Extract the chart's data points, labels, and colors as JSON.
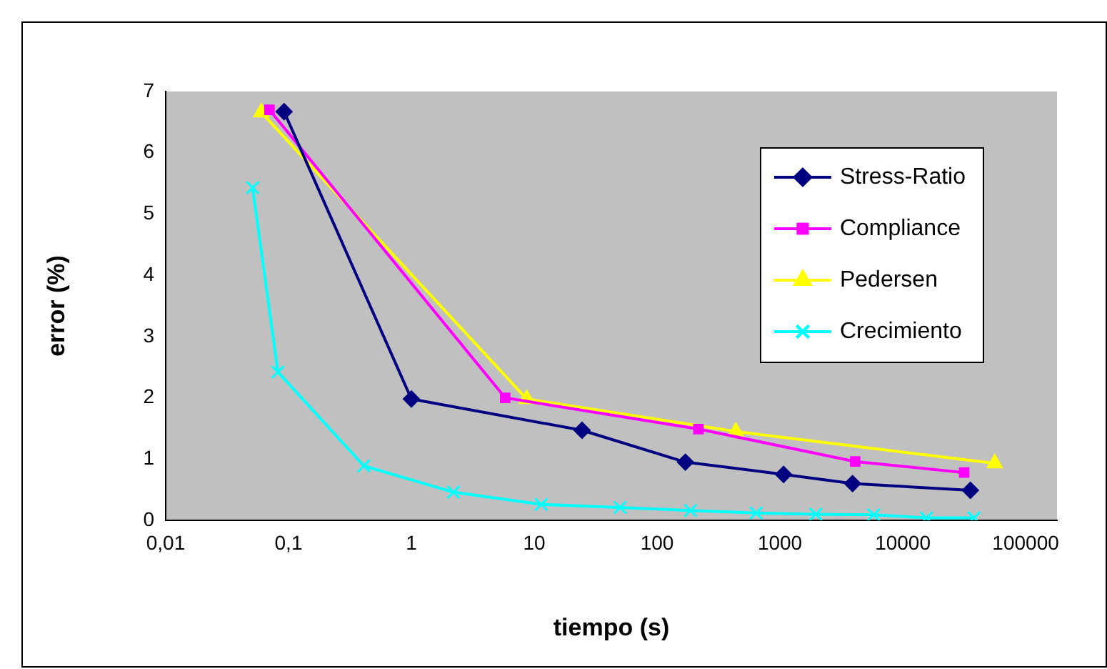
{
  "chart_data": {
    "type": "line",
    "xlabel": "tiempo (s)",
    "ylabel": "error (%)",
    "log": "x",
    "xlim": [
      0.01,
      180000
    ],
    "xticks": [
      {
        "value": 0.01,
        "label": "0,01"
      },
      {
        "value": 0.1,
        "label": "0,1"
      },
      1,
      10,
      100,
      1000,
      10000,
      100000
    ],
    "ylim": [
      0,
      7
    ],
    "yticks": [
      0,
      1,
      2,
      3,
      4,
      5,
      6,
      7
    ],
    "grid": false,
    "legend": "top right",
    "series": [
      {
        "name": "Stress-Ratio",
        "color": "#000080",
        "marker": "diamond",
        "x": [
          0.092,
          1,
          24.5,
          170,
          1070,
          3900,
          35500
        ],
        "values": [
          6.67,
          1.98,
          1.47,
          0.95,
          0.75,
          0.6,
          0.49
        ]
      },
      {
        "name": "Compliance",
        "color": "#ff00ff",
        "marker": "square",
        "x": [
          0.07,
          5.8,
          217,
          4100,
          31600
        ],
        "values": [
          6.7,
          2.0,
          1.49,
          0.96,
          0.78
        ]
      },
      {
        "name": "Pedersen",
        "color": "#ffff00",
        "marker": "triangle",
        "x": [
          0.06,
          8.7,
          437,
          56000
        ],
        "values": [
          6.66,
          1.98,
          1.45,
          0.93
        ]
      },
      {
        "name": "Crecimiento",
        "color": "#00ffff",
        "marker": "cross",
        "x": [
          0.051,
          0.082,
          0.41,
          2.2,
          11.4,
          50,
          187,
          640,
          1960,
          5800,
          15600,
          38000
        ],
        "values": [
          5.43,
          2.42,
          0.89,
          0.46,
          0.26,
          0.21,
          0.16,
          0.12,
          0.1,
          0.09,
          0.04,
          0.04
        ]
      }
    ]
  }
}
